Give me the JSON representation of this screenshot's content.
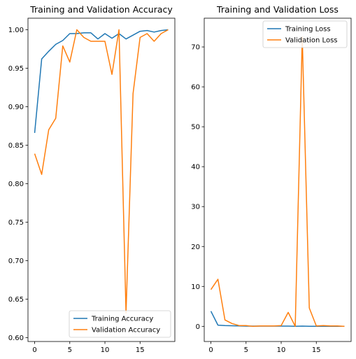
{
  "chart_data": [
    {
      "type": "line",
      "title": "Training and Validation Accuracy",
      "xlabel": "",
      "ylabel": "",
      "xlim": [
        -0.95,
        19.95
      ],
      "ylim": [
        0.595,
        1.015
      ],
      "x_ticks": [
        0,
        5,
        10,
        15
      ],
      "y_ticks": [
        0.6,
        0.65,
        0.7,
        0.75,
        0.8,
        0.85,
        0.9,
        0.95,
        1.0
      ],
      "y_tick_labels": [
        "0.60",
        "0.65",
        "0.70",
        "0.75",
        "0.80",
        "0.85",
        "0.90",
        "0.95",
        "1.00"
      ],
      "grid": false,
      "legend_position": "lower right",
      "x": [
        0,
        1,
        2,
        3,
        4,
        5,
        6,
        7,
        8,
        9,
        10,
        11,
        12,
        13,
        14,
        15,
        16,
        17,
        18,
        19
      ],
      "series": [
        {
          "name": "Training Accuracy",
          "color": "#1f77b4",
          "values": [
            0.866,
            0.962,
            0.972,
            0.981,
            0.986,
            0.995,
            0.995,
            0.996,
            0.996,
            0.988,
            0.995,
            0.989,
            0.995,
            0.988,
            0.993,
            0.998,
            0.999,
            0.997,
            0.999,
            1.0
          ]
        },
        {
          "name": "Validation Accuracy",
          "color": "#ff7f0e",
          "values": [
            0.839,
            0.812,
            0.87,
            0.885,
            0.979,
            0.958,
            1.0,
            0.99,
            0.985,
            0.985,
            0.985,
            0.942,
            1.0,
            0.632,
            0.917,
            0.99,
            0.995,
            0.985,
            0.995,
            1.0
          ]
        }
      ]
    },
    {
      "type": "line",
      "title": "Training and Validation Loss",
      "xlabel": "",
      "ylabel": "",
      "xlim": [
        -0.95,
        19.95
      ],
      "ylim": [
        -3.8,
        77.2
      ],
      "x_ticks": [
        0,
        5,
        10,
        15
      ],
      "y_ticks": [
        0,
        10,
        20,
        30,
        40,
        50,
        60,
        70
      ],
      "y_tick_labels": [
        "0",
        "10",
        "20",
        "30",
        "40",
        "50",
        "60",
        "70"
      ],
      "grid": false,
      "legend_position": "upper right",
      "x": [
        0,
        1,
        2,
        3,
        4,
        5,
        6,
        7,
        8,
        9,
        10,
        11,
        12,
        13,
        14,
        15,
        16,
        17,
        18,
        19
      ],
      "series": [
        {
          "name": "Training Loss",
          "color": "#1f77b4",
          "values": [
            3.8,
            0.3,
            0.2,
            0.15,
            0.1,
            0.05,
            0.05,
            0.05,
            0.05,
            0.05,
            0.05,
            0.05,
            0.02,
            0.05,
            0.02,
            0.01,
            0.01,
            0.01,
            0.01,
            0.01
          ]
        },
        {
          "name": "Validation Loss",
          "color": "#ff7f0e",
          "values": [
            9.2,
            11.8,
            1.6,
            0.7,
            0.2,
            0.2,
            0.0,
            0.1,
            0.1,
            0.1,
            0.2,
            3.5,
            0.0,
            72.5,
            4.6,
            0.1,
            0.2,
            0.1,
            0.1,
            0.0
          ]
        }
      ]
    }
  ]
}
